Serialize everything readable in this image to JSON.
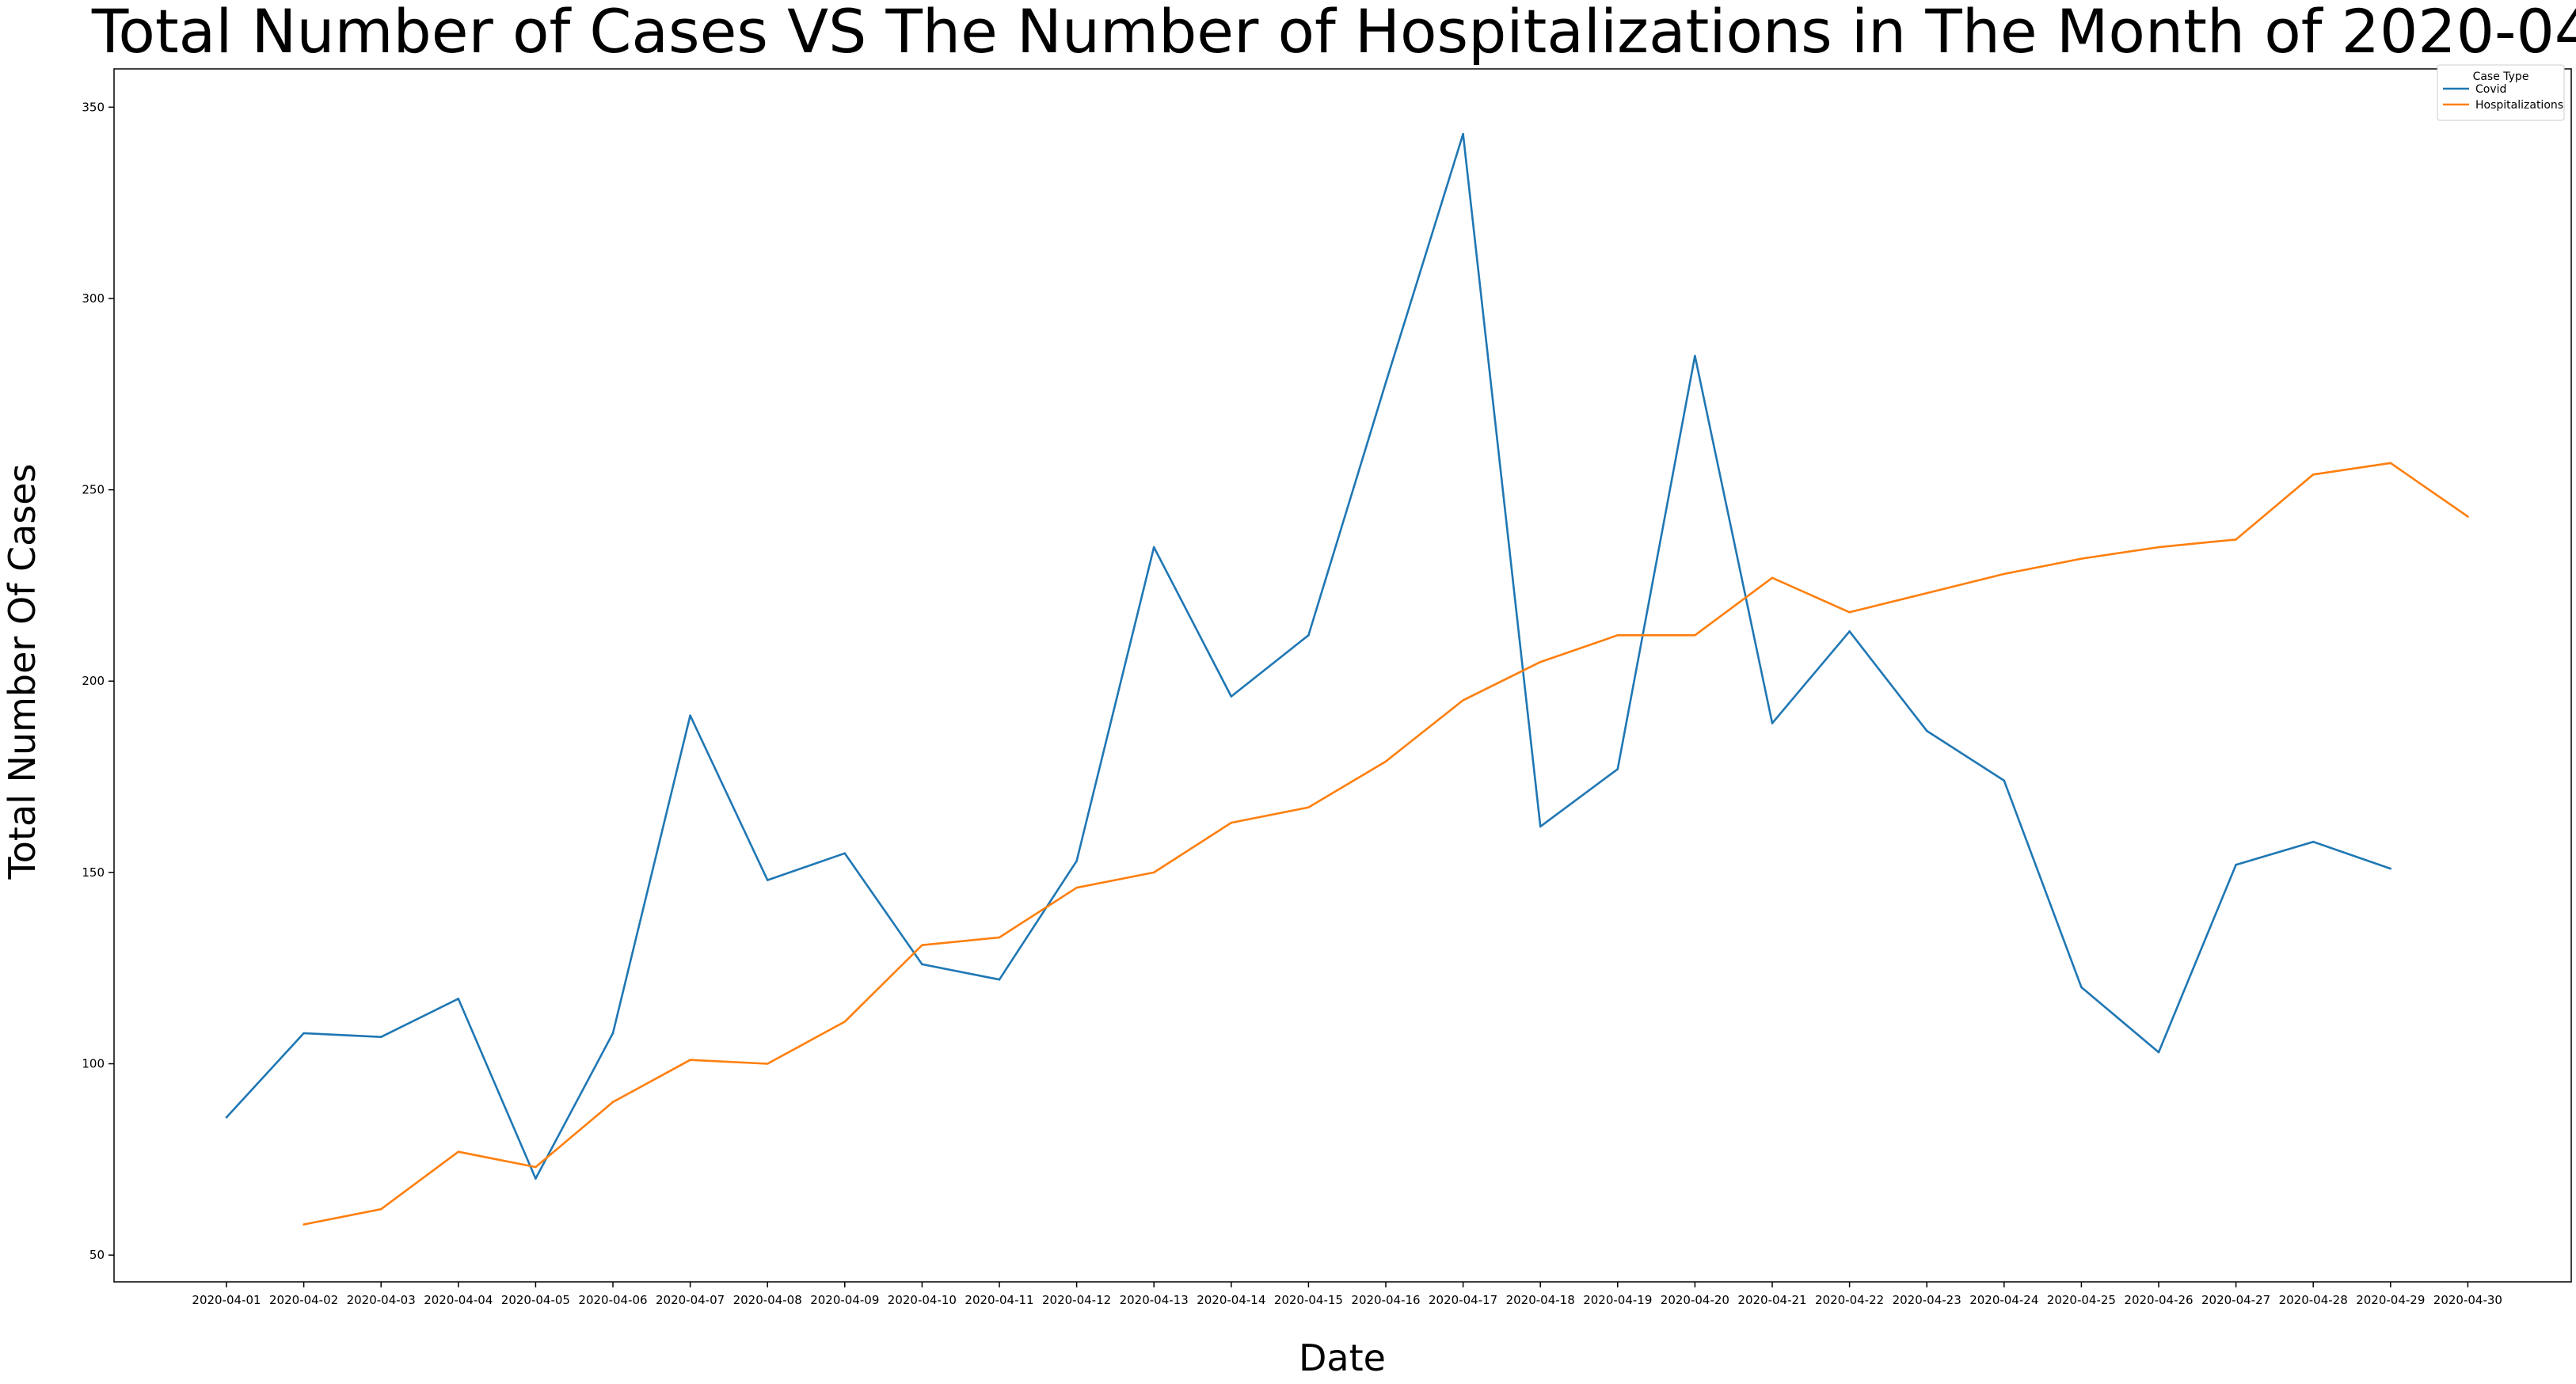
{
  "chart_data": {
    "type": "line",
    "title": "Total Number of Cases VS The Number of Hospitalizations in The Month of 2020-04",
    "xlabel": "Date",
    "ylabel": "Total Number Of Cases",
    "ylim": [
      43,
      360
    ],
    "yticks": [
      50,
      100,
      150,
      200,
      250,
      300,
      350
    ],
    "grid": false,
    "legend": {
      "title": "Case Type",
      "placement": "top-right"
    },
    "categories": [
      "2020-04-01",
      "2020-04-02",
      "2020-04-03",
      "2020-04-04",
      "2020-04-05",
      "2020-04-06",
      "2020-04-07",
      "2020-04-08",
      "2020-04-09",
      "2020-04-10",
      "2020-04-11",
      "2020-04-12",
      "2020-04-13",
      "2020-04-14",
      "2020-04-15",
      "2020-04-16",
      "2020-04-17",
      "2020-04-18",
      "2020-04-19",
      "2020-04-20",
      "2020-04-21",
      "2020-04-22",
      "2020-04-23",
      "2020-04-24",
      "2020-04-25",
      "2020-04-26",
      "2020-04-27",
      "2020-04-28",
      "2020-04-29",
      "2020-04-30"
    ],
    "series": [
      {
        "name": "Covid",
        "color": "#1f77b4",
        "values": [
          86,
          108,
          107,
          117,
          70,
          108,
          191,
          148,
          155,
          126,
          122,
          153,
          235,
          196,
          212,
          278,
          343,
          162,
          177,
          285,
          189,
          213,
          187,
          174,
          120,
          103,
          152,
          158,
          151,
          null
        ]
      },
      {
        "name": "Hospitalizations",
        "color": "#ff7f0e",
        "values": [
          null,
          58,
          62,
          77,
          73,
          90,
          101,
          100,
          111,
          131,
          133,
          146,
          150,
          163,
          167,
          179,
          195,
          205,
          212,
          212,
          227,
          218,
          223,
          228,
          232,
          235,
          237,
          254,
          257,
          243
        ]
      }
    ]
  }
}
